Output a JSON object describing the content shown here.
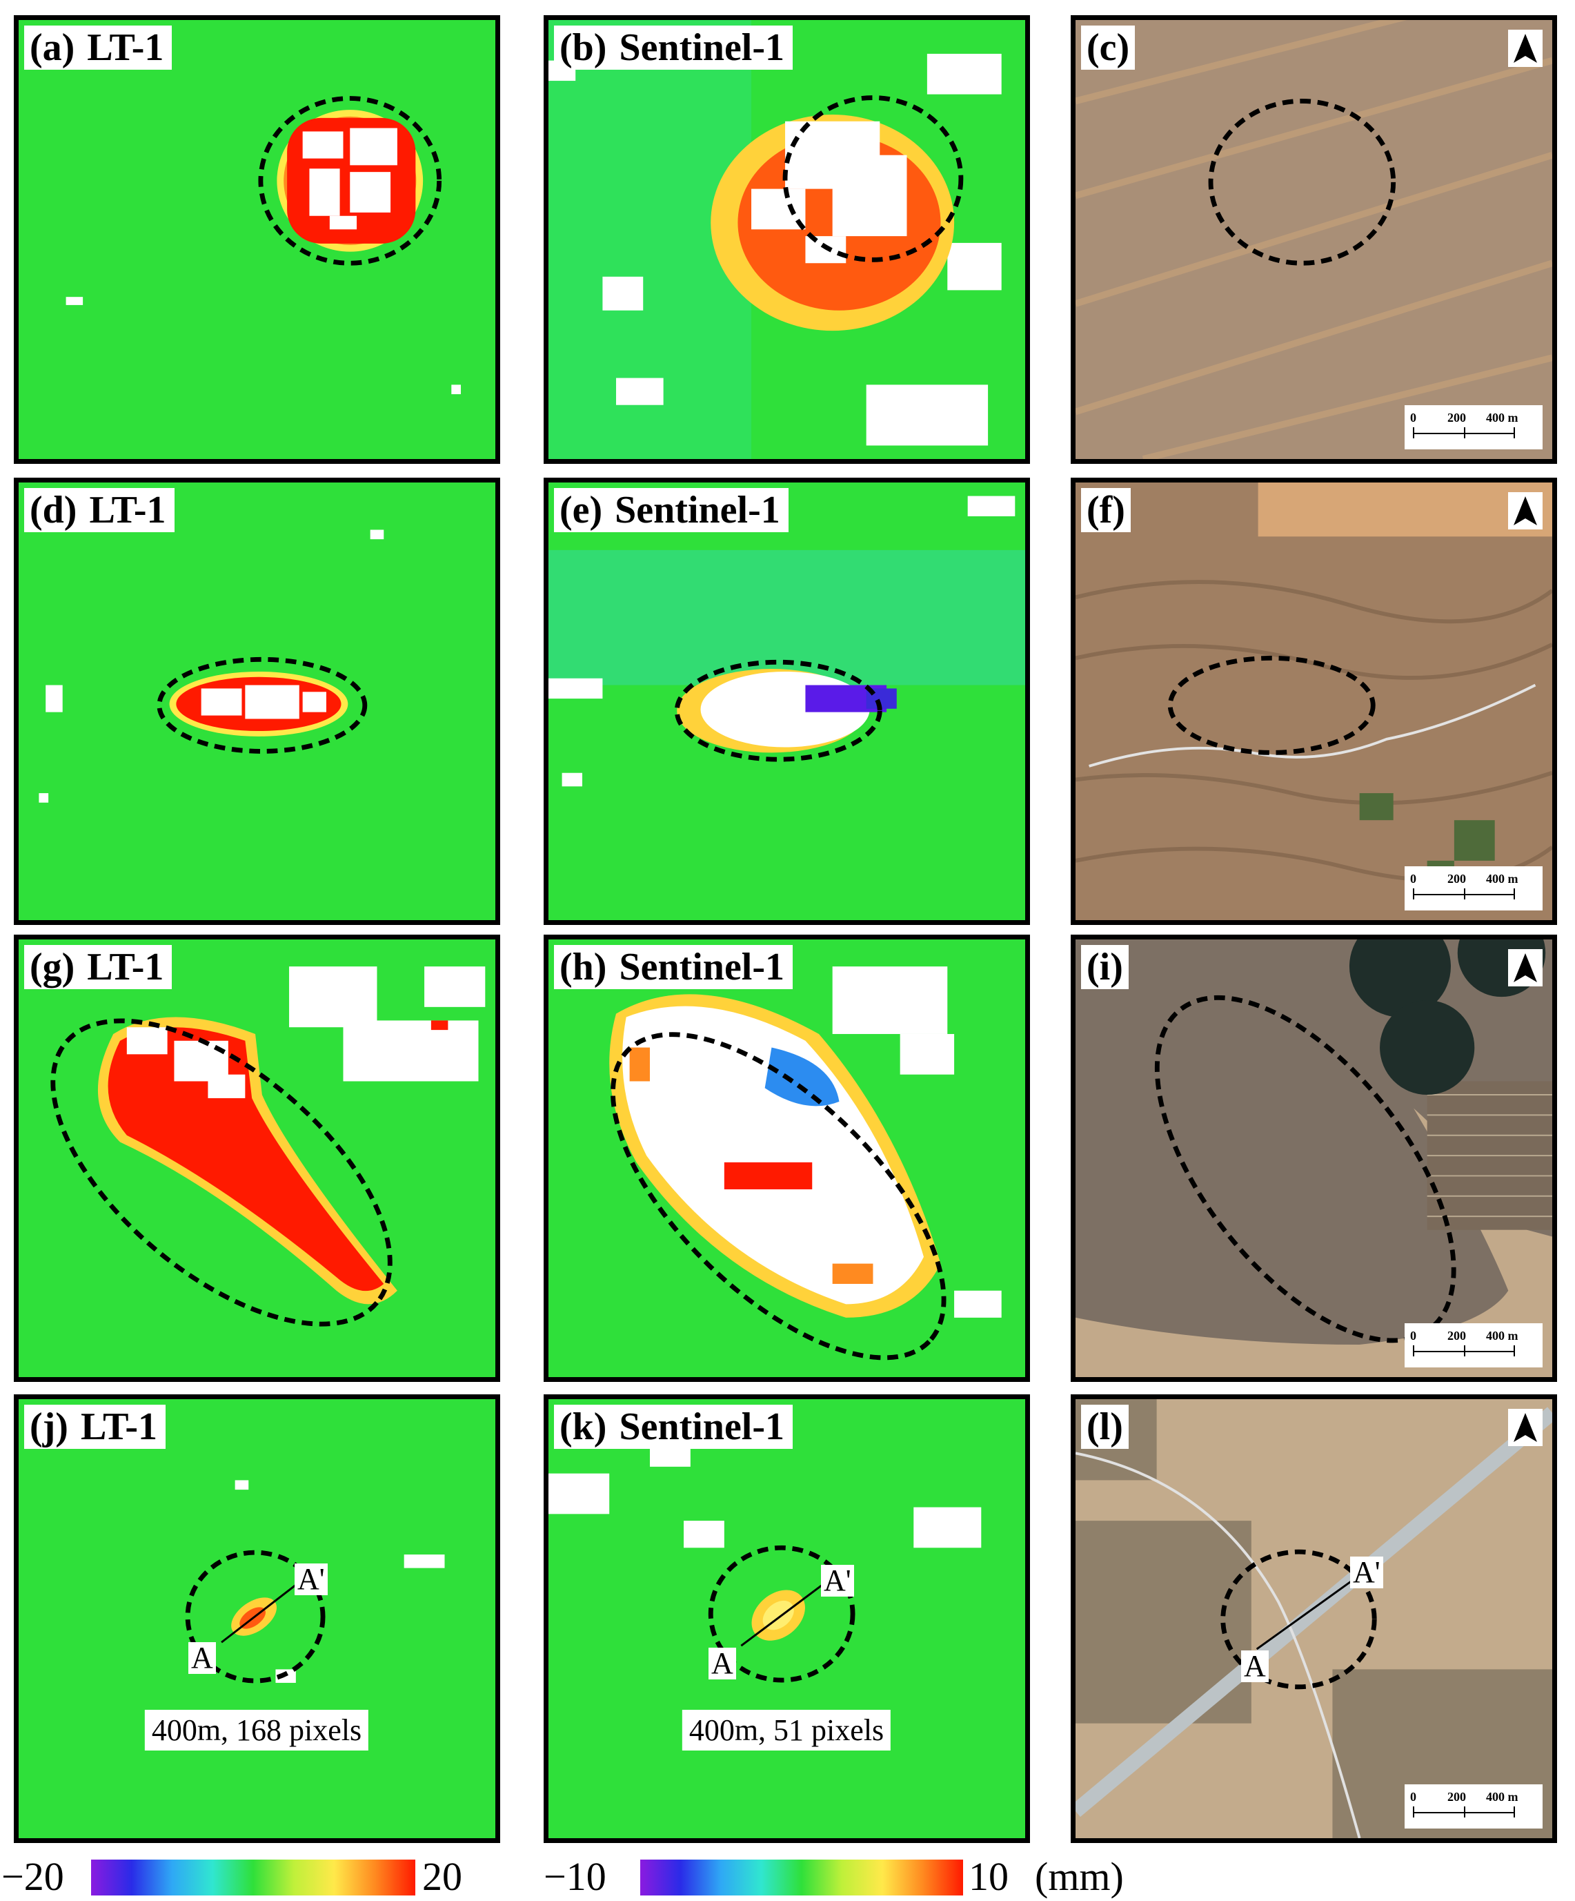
{
  "panels": [
    {
      "letter": "(a)",
      "satellite": "LT-1"
    },
    {
      "letter": "(b)",
      "satellite": "Sentinel-1"
    },
    {
      "letter": "(c)",
      "satellite": ""
    },
    {
      "letter": "(d)",
      "satellite": "LT-1"
    },
    {
      "letter": "(e)",
      "satellite": "Sentinel-1"
    },
    {
      "letter": "(f)",
      "satellite": ""
    },
    {
      "letter": "(g)",
      "satellite": "LT-1"
    },
    {
      "letter": "(h)",
      "satellite": "Sentinel-1"
    },
    {
      "letter": "(i)",
      "satellite": ""
    },
    {
      "letter": "(j)",
      "satellite": "LT-1"
    },
    {
      "letter": "(k)",
      "satellite": "Sentinel-1"
    },
    {
      "letter": "(l)",
      "satellite": ""
    }
  ],
  "scale_bar": {
    "ticks": [
      "0",
      "200",
      "400 m"
    ]
  },
  "profile": {
    "start": "A",
    "end": "A'"
  },
  "pixel_counts": {
    "lt1": "400m, 168 pixels",
    "sentinel1": "400m, 51 pixels"
  },
  "colorbars": {
    "lt1": {
      "min": "−20",
      "max": "20"
    },
    "sentinel1": {
      "min": "−10",
      "max": "10",
      "unit": "(mm)"
    }
  },
  "colors": {
    "insar_background": "#2fe03a",
    "deformation_peak": "#ff1a00",
    "outline": "#000000"
  },
  "icons": {
    "north_arrow": "north-arrow-icon"
  }
}
